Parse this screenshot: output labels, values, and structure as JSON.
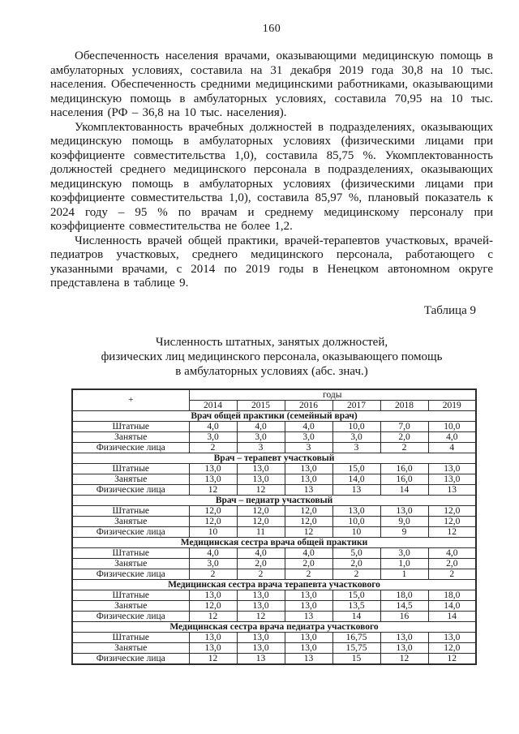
{
  "page": {
    "number": "160",
    "paragraphs": [
      "Обеспеченность населения врачами, оказывающими медицинскую помощь в амбулаторных условиях, составила на 31 декабря 2019 года 30,8 на 10 тыс. населения. Обеспеченность средними медицинскими работниками, оказывающими медицинскую помощь в амбулаторных условиях, составила 70,95 на 10 тыс. населения (РФ – 36,8 на 10 тыс. населения).",
      "Укомплектованность врачебных должностей в подразделениях, оказывающих медицинскую помощь в амбулаторных условиях (физическими лицами при коэффициенте совместительства 1,0), составила 85,75 %. Укомплектованность должностей среднего медицинского персонала в подразделениях, оказывающих медицинскую помощь в амбулаторных условиях (физическими лицами при коэффициенте совместительства 1,0), составила 85,97 %, плановый показатель к 2024 году – 95 % по врачам и среднему медицинскому персоналу при коэффициенте совместительства не более 1,2.",
      "Численность врачей общей практики, врачей-терапевтов участковых, врачей-педиатров участковых, среднего медицинского персонала, работающего с указанными врачами, с 2014 по 2019 годы в Ненецком автономном округе представлена в таблице 9."
    ],
    "table_label": "Таблица 9",
    "table_title_lines": [
      "Численность штатных, занятых должностей,",
      "физических лиц медицинского персонала, оказывающего помощь",
      "в амбулаторных условиях (абс. знач.)"
    ]
  },
  "table": {
    "corner": "+",
    "years_header": "годы",
    "years": [
      "2014",
      "2015",
      "2016",
      "2017",
      "2018",
      "2019"
    ],
    "row_labels": [
      "Штатные",
      "Занятые",
      "Физические лица"
    ],
    "sections": [
      {
        "title": "Врач общей практики (семейный врач)",
        "rows": [
          [
            "4,0",
            "4,0",
            "4,0",
            "10,0",
            "7,0",
            "10,0"
          ],
          [
            "3,0",
            "3,0",
            "3,0",
            "3,0",
            "2,0",
            "4,0"
          ],
          [
            "2",
            "3",
            "3",
            "3",
            "2",
            "4"
          ]
        ]
      },
      {
        "title": "Врач – терапевт участковый",
        "rows": [
          [
            "13,0",
            "13,0",
            "13,0",
            "15,0",
            "16,0",
            "13,0"
          ],
          [
            "13,0",
            "13,0",
            "13,0",
            "14,0",
            "16,0",
            "13,0"
          ],
          [
            "12",
            "12",
            "13",
            "13",
            "14",
            "13"
          ]
        ]
      },
      {
        "title": "Врач – педиатр участковый",
        "rows": [
          [
            "12,0",
            "12,0",
            "12,0",
            "13,0",
            "13,0",
            "12,0"
          ],
          [
            "12,0",
            "12,0",
            "12,0",
            "10,0",
            "9,0",
            "12,0"
          ],
          [
            "10",
            "11",
            "12",
            "10",
            "9",
            "12"
          ]
        ]
      },
      {
        "title": "Медицинская сестра врача общей практики",
        "rows": [
          [
            "4,0",
            "4,0",
            "4,0",
            "5,0",
            "3,0",
            "4,0"
          ],
          [
            "3,0",
            "2,0",
            "2,0",
            "2,0",
            "1,0",
            "2,0"
          ],
          [
            "2",
            "2",
            "2",
            "2",
            "1",
            "2"
          ]
        ]
      },
      {
        "title": "Медицинская сестра врача терапевта участкового",
        "rows": [
          [
            "13,0",
            "13,0",
            "13,0",
            "15,0",
            "18,0",
            "18,0"
          ],
          [
            "12,0",
            "13,0",
            "13,0",
            "13,5",
            "14,5",
            "14,0"
          ],
          [
            "12",
            "12",
            "13",
            "14",
            "16",
            "14"
          ]
        ]
      },
      {
        "title": "Медицинская сестра врача педиатра участкового",
        "rows": [
          [
            "13,0",
            "13,0",
            "13,0",
            "16,75",
            "13,0",
            "13,0"
          ],
          [
            "13,0",
            "13,0",
            "13,0",
            "15,75",
            "13,0",
            "12,0"
          ],
          [
            "12",
            "13",
            "13",
            "15",
            "12",
            "12"
          ]
        ]
      }
    ]
  }
}
